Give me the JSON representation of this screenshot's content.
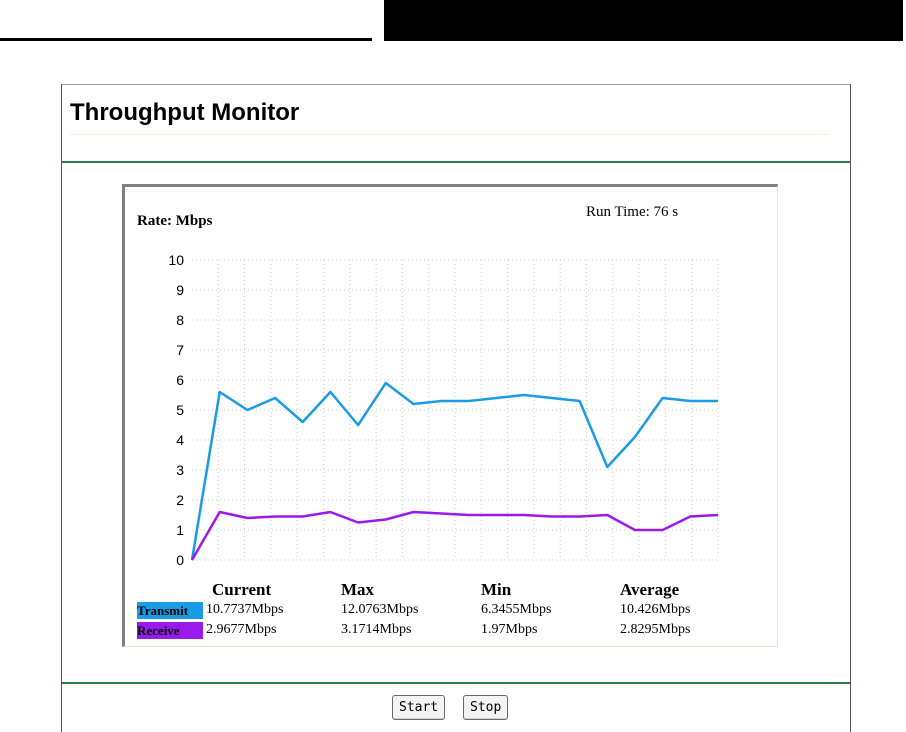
{
  "page": {
    "title": "Throughput Monitor"
  },
  "panel": {
    "rate_label": "Rate: Mbps",
    "run_time": "Run Time: 76 s"
  },
  "chart_data": {
    "type": "line",
    "ylim": [
      0,
      10
    ],
    "y_ticks": [
      "10",
      "9",
      "8",
      "7",
      "6",
      "5",
      "4",
      "3",
      "2",
      "1",
      "0"
    ],
    "x": [
      0,
      1,
      2,
      3,
      4,
      5,
      6,
      7,
      8,
      9,
      10,
      11,
      12,
      13,
      14,
      15,
      16,
      17,
      18,
      19
    ],
    "grid": true,
    "series": [
      {
        "name": "Transmit",
        "color": "#1a9be6",
        "values": [
          0,
          5.6,
          5.0,
          5.4,
          4.6,
          5.6,
          4.5,
          5.9,
          5.2,
          5.3,
          5.3,
          5.4,
          5.5,
          5.4,
          5.3,
          3.1,
          4.1,
          5.4,
          5.3,
          5.3
        ]
      },
      {
        "name": "Receive",
        "color": "#9a1aee",
        "values": [
          0,
          1.6,
          1.4,
          1.45,
          1.45,
          1.6,
          1.25,
          1.35,
          1.6,
          1.55,
          1.5,
          1.5,
          1.5,
          1.45,
          1.45,
          1.5,
          1.0,
          1.0,
          1.45,
          1.5
        ]
      }
    ]
  },
  "stats": {
    "headers": {
      "current": "Current",
      "max": "Max",
      "min": "Min",
      "average": "Average"
    },
    "rows": [
      {
        "label": "Transmit",
        "color": "#1a9be6",
        "current": "10.7737Mbps",
        "max": "12.0763Mbps",
        "min": "6.3455Mbps",
        "average": "10.426Mbps"
      },
      {
        "label": "Receive",
        "color": "#9a1aee",
        "current": "2.9677Mbps",
        "max": "3.1714Mbps",
        "min": "1.97Mbps",
        "average": "2.8295Mbps"
      }
    ]
  },
  "buttons": {
    "start": "Start",
    "stop": "Stop"
  }
}
